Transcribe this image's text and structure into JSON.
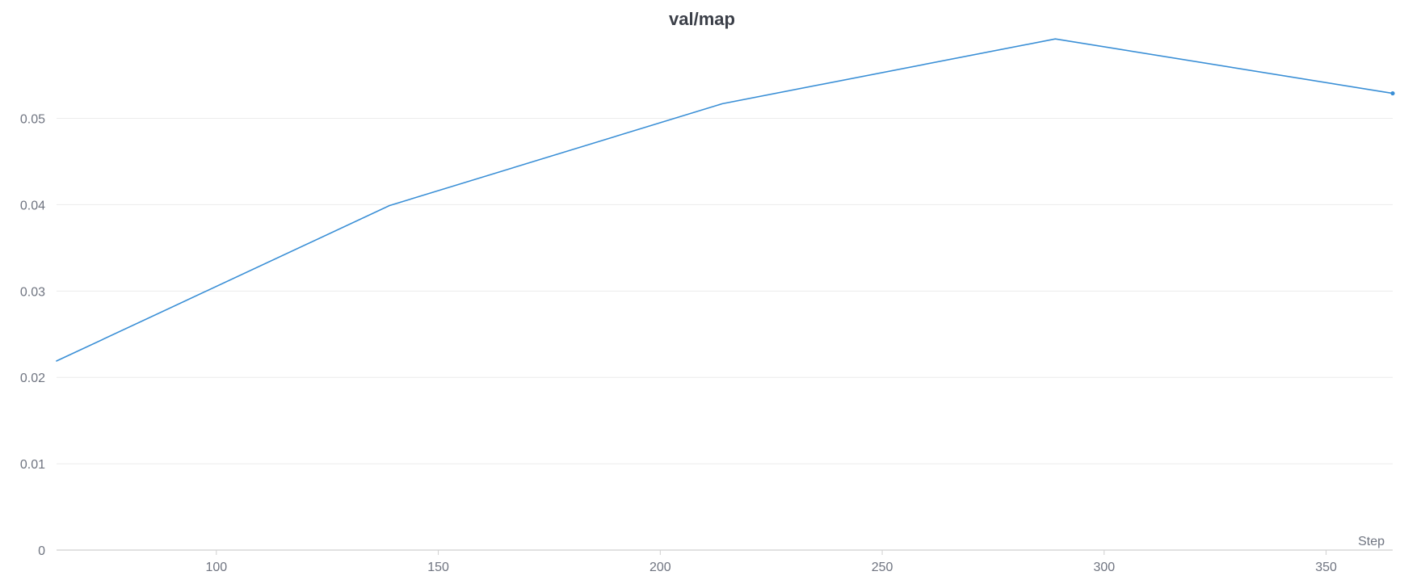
{
  "chart_data": {
    "type": "line",
    "title": "val/map",
    "xlabel": "Step",
    "ylabel": "",
    "xlim": [
      64,
      365
    ],
    "ylim": [
      0,
      0.0595
    ],
    "x_ticks": [
      100,
      150,
      200,
      250,
      300,
      350
    ],
    "y_ticks": [
      0,
      0.01,
      0.02,
      0.03,
      0.04,
      0.05
    ],
    "y_tick_labels": [
      "0",
      "0.01",
      "0.02",
      "0.03",
      "0.04",
      "0.05"
    ],
    "grid": true,
    "series": [
      {
        "color": "#3a8fd6",
        "points": [
          {
            "x": 64,
            "y": 0.0219
          },
          {
            "x": 139,
            "y": 0.0399
          },
          {
            "x": 214,
            "y": 0.0517
          },
          {
            "x": 289,
            "y": 0.0592
          },
          {
            "x": 365,
            "y": 0.0529
          }
        ]
      }
    ]
  }
}
